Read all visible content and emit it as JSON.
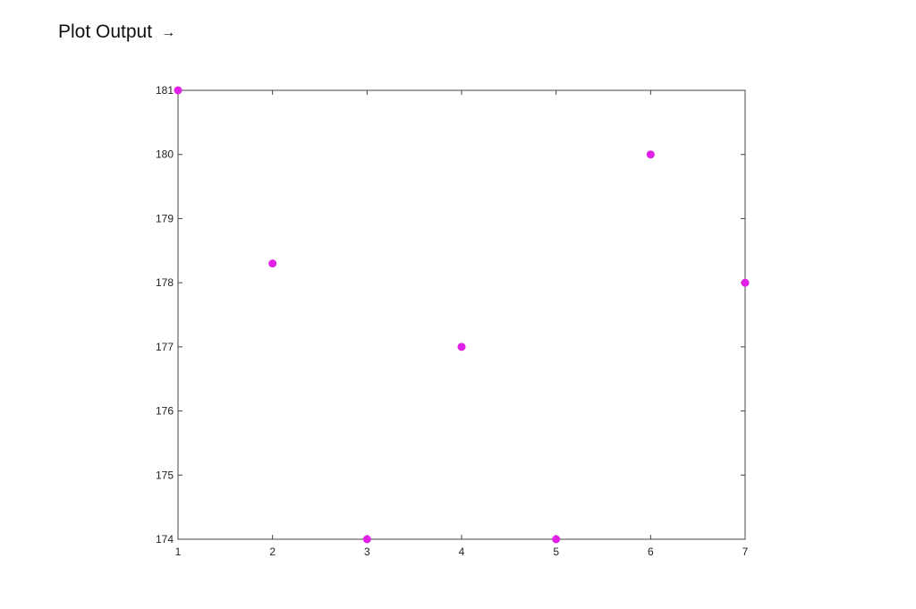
{
  "page": {
    "title": "Plot Output",
    "title_arrow": "→"
  },
  "chart_data": {
    "type": "scatter",
    "x": [
      1,
      2,
      3,
      4,
      5,
      6,
      7
    ],
    "y": [
      181,
      178.3,
      174,
      177,
      174,
      180,
      178
    ],
    "xlim": [
      1,
      7
    ],
    "ylim": [
      174,
      181
    ],
    "xticks": [
      "1",
      "2",
      "3",
      "4",
      "5",
      "6",
      "7"
    ],
    "yticks": [
      "174",
      "175",
      "176",
      "177",
      "178",
      "179",
      "180",
      "181"
    ],
    "grid": false,
    "marker_color": "#e020e6",
    "axis_color": "#444444"
  }
}
